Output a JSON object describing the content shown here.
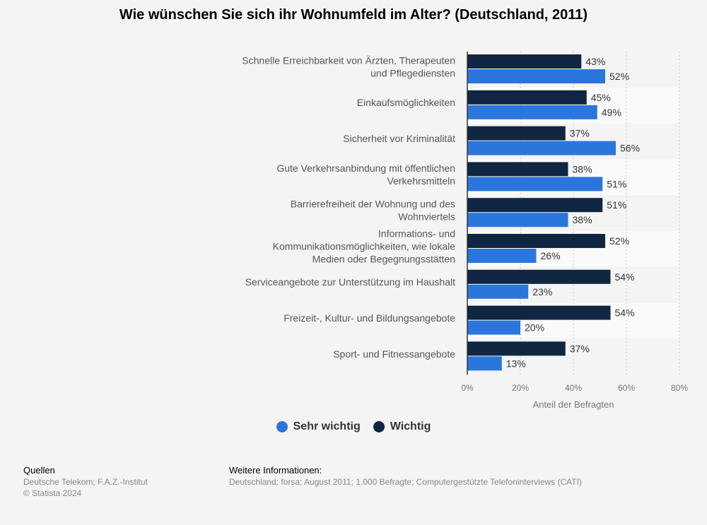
{
  "title": "Wie wünschen Sie sich ihr Wohnumfeld im Alter? (Deutschland, 2011)",
  "chart_data": {
    "type": "bar",
    "orientation": "horizontal",
    "categories": [
      [
        "Schnelle Erreichbarkeit von Ärzten, Therapeuten",
        "und Pflegediensten"
      ],
      [
        "Einkaufsmöglichkeiten"
      ],
      [
        "Sicherheit vor Kriminalität"
      ],
      [
        "Gute Verkehrsanbindung mit öffentlichen",
        "Verkehrsmitteln"
      ],
      [
        "Barrierefreiheit der Wohnung und des",
        "Wohnviertels"
      ],
      [
        "Informations- und",
        "Kommunikationsmöglichkeiten, wie lokale",
        "Medien oder Begegnungsstätten"
      ],
      [
        "Serviceangebote zur Unterstützung im Haushalt"
      ],
      [
        "Freizeit-, Kultur- und Bildungsangebote"
      ],
      [
        "Sport- und Fitnessangebote"
      ]
    ],
    "series": [
      {
        "name": "Wichtig",
        "color": "#0f2742",
        "values": [
          43,
          45,
          37,
          38,
          51,
          52,
          54,
          54,
          37
        ]
      },
      {
        "name": "Sehr wichtig",
        "color": "#2a76dd",
        "values": [
          52,
          49,
          56,
          51,
          38,
          26,
          23,
          20,
          13
        ]
      }
    ],
    "value_suffix": "%",
    "xlim": [
      0,
      80
    ],
    "xticks": [
      "0%",
      "20%",
      "40%",
      "60%",
      "80%"
    ],
    "xlabel": "Anteil der Befragten",
    "grid": true
  },
  "legend": [
    {
      "label": "Sehr wichtig",
      "color": "#2a76dd"
    },
    {
      "label": "Wichtig",
      "color": "#0f2742"
    }
  ],
  "footer": {
    "sources_heading": "Quellen",
    "sources_text": "Deutsche Telekom; F.A.Z.-Institut",
    "copyright": "© Statista 2024",
    "info_heading": "Weitere Informationen:",
    "info_text": "Deutschland; forsa; August 2011; 1.000 Befragte; Computergestützte Telefoninterviews (CATI)"
  }
}
